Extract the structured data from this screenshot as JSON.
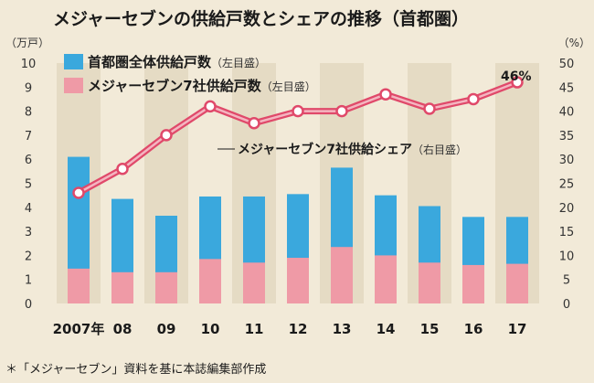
{
  "chart_data": {
    "type": "bar",
    "title": "メジャーセブンの供給戸数とシェアの推移（首都圏）",
    "left_axis_unit": "（万戸）",
    "right_axis_unit": "（%）",
    "categories": [
      "2007年",
      "08",
      "09",
      "10",
      "11",
      "12",
      "13",
      "14",
      "15",
      "16",
      "17"
    ],
    "ylim_left": [
      0,
      10
    ],
    "ylim_right": [
      0,
      50
    ],
    "yticks_left": [
      "0",
      "1",
      "2",
      "3",
      "4",
      "5",
      "6",
      "7",
      "8",
      "9",
      "10"
    ],
    "yticks_right": [
      "0",
      "5",
      "10",
      "15",
      "20",
      "25",
      "30",
      "35",
      "40",
      "45",
      "50"
    ],
    "series": [
      {
        "name": "首都圏全体供給戸数",
        "axis_note": "（左目盛）",
        "type": "bar",
        "values": [
          6.1,
          4.35,
          3.65,
          4.45,
          4.45,
          4.55,
          5.65,
          4.5,
          4.05,
          3.6,
          3.6
        ]
      },
      {
        "name": "メジャーセブン7社供給戸数",
        "axis_note": "（左目盛）",
        "type": "bar",
        "values": [
          1.45,
          1.3,
          1.3,
          1.85,
          1.7,
          1.9,
          2.35,
          2.0,
          1.7,
          1.6,
          1.65
        ]
      },
      {
        "name": "メジャーセブン7社供給シェア",
        "axis_note": "（右目盛）",
        "type": "line",
        "values": [
          23,
          28,
          35,
          41,
          37.5,
          40,
          40,
          43.5,
          40.5,
          42.5,
          46
        ]
      }
    ],
    "annotation": "46%",
    "grid": "alternating vertical bands",
    "colors": {
      "background": "#f2ead8",
      "band": "#e5dbc4",
      "total_bar": "#3aa8dd",
      "major7_bar": "#ef9aa6",
      "share_line": "#e0496a",
      "share_line_inner": "#f4b5c0"
    }
  },
  "source_note": "＊「メジャーセブン」資料を基に本誌編集部作成"
}
